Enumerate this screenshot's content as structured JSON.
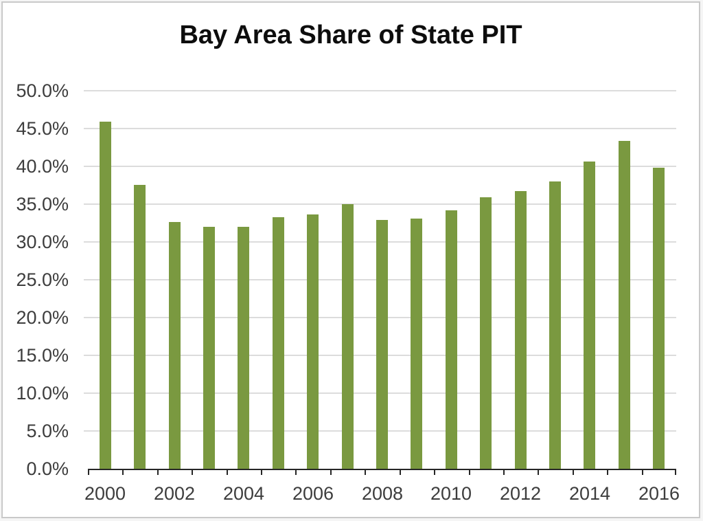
{
  "frame": {
    "background": "#ffffff",
    "border_color": "#c9c9c9"
  },
  "chart_data": {
    "type": "bar",
    "title": "Bay Area Share of State PIT",
    "categories": [
      2000,
      2001,
      2002,
      2003,
      2004,
      2005,
      2006,
      2007,
      2008,
      2009,
      2010,
      2011,
      2012,
      2013,
      2014,
      2015,
      2016
    ],
    "values": [
      45.9,
      37.5,
      32.6,
      32.0,
      32.0,
      33.3,
      33.6,
      35.0,
      32.9,
      33.1,
      34.2,
      35.9,
      36.7,
      38.0,
      40.6,
      43.4,
      39.8
    ],
    "units": "percent",
    "xlabel": "",
    "ylabel": "",
    "ylim": [
      0,
      50
    ],
    "ytick_step": 5,
    "ytick_labels": [
      "0.0%",
      "5.0%",
      "10.0%",
      "15.0%",
      "20.0%",
      "25.0%",
      "30.0%",
      "35.0%",
      "40.0%",
      "45.0%",
      "50.0%"
    ],
    "xtick_labels": [
      "2000",
      "2002",
      "2004",
      "2006",
      "2008",
      "2010",
      "2012",
      "2014",
      "2016"
    ],
    "xtick_label_every": 2,
    "grid": "horizontal",
    "legend": "none",
    "bar_color": "#7a9940",
    "gridline_color": "#dcdcdc",
    "axis_color": "#262626",
    "tick_label_color": "#3d3d3d",
    "title_color": "#0d0d0d"
  }
}
